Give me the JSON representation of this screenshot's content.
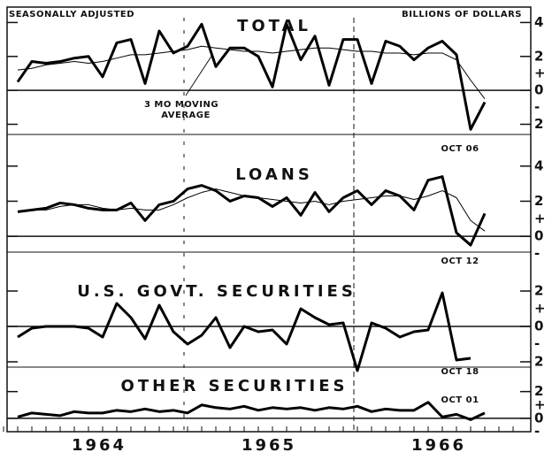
{
  "header": {
    "left": "SEASONALLY ADJUSTED",
    "right": "BILLIONS OF DOLLARS"
  },
  "x_axis": {
    "labels": [
      "1964",
      "1965",
      "1966"
    ]
  },
  "chart_data": [
    {
      "type": "line",
      "title": "TOTAL",
      "note": "OCT 06",
      "annotation": [
        "3 MO MOVING",
        "AVERAGE"
      ],
      "ylim": [
        -2.6,
        4.7
      ],
      "yticks": [
        {
          "value": -2,
          "label": "2"
        },
        0,
        2,
        4
      ],
      "signs": [
        "+",
        "-"
      ],
      "series": [
        {
          "name": "Monthly",
          "color": "#000000",
          "width": 3,
          "values": [
            0.5,
            1.7,
            1.6,
            1.7,
            1.9,
            2.0,
            0.8,
            2.8,
            3.0,
            0.4,
            3.5,
            2.2,
            2.6,
            3.9,
            1.4,
            2.5,
            2.5,
            2.0,
            0.2,
            3.9,
            1.8,
            3.2,
            0.3,
            3.0,
            3.0,
            0.4,
            2.9,
            2.6,
            1.8,
            2.5,
            2.9,
            2.1,
            -2.3,
            -0.7
          ]
        },
        {
          "name": "3 MO MOVING AVERAGE",
          "color": "#000000",
          "width": 1,
          "values": [
            1.2,
            1.3,
            1.5,
            1.6,
            1.7,
            1.6,
            1.7,
            1.9,
            2.1,
            2.1,
            2.2,
            2.3,
            2.4,
            2.6,
            2.5,
            2.4,
            2.3,
            2.3,
            2.2,
            2.3,
            2.4,
            2.5,
            2.5,
            2.4,
            2.3,
            2.3,
            2.2,
            2.2,
            2.1,
            2.2,
            2.2,
            1.8,
            0.6,
            -0.5
          ]
        }
      ]
    },
    {
      "type": "line",
      "title": "LOANS",
      "note": "OCT 12",
      "ylim": [
        -0.9,
        5.4
      ],
      "yticks": [
        0,
        2,
        4
      ],
      "signs": [
        "+",
        "-"
      ],
      "series": [
        {
          "name": "Monthly",
          "color": "#000000",
          "width": 3,
          "values": [
            1.4,
            1.5,
            1.6,
            1.9,
            1.8,
            1.6,
            1.5,
            1.5,
            1.9,
            0.9,
            1.8,
            2.0,
            2.7,
            2.9,
            2.6,
            2.0,
            2.3,
            2.2,
            1.7,
            2.2,
            1.2,
            2.5,
            1.4,
            2.2,
            2.6,
            1.8,
            2.6,
            2.3,
            1.5,
            3.2,
            3.4,
            0.2,
            -0.5,
            1.3
          ]
        },
        {
          "name": "3 MO MOVING AVERAGE",
          "color": "#000000",
          "width": 1,
          "values": [
            1.4,
            1.5,
            1.5,
            1.7,
            1.8,
            1.8,
            1.6,
            1.5,
            1.6,
            1.5,
            1.5,
            1.8,
            2.2,
            2.5,
            2.7,
            2.5,
            2.3,
            2.2,
            2.1,
            2.0,
            1.9,
            2.0,
            1.8,
            2.0,
            2.1,
            2.2,
            2.3,
            2.3,
            2.1,
            2.3,
            2.6,
            2.2,
            0.9,
            0.3
          ]
        }
      ]
    },
    {
      "type": "line",
      "title": "U.S. GOVT. SECURITIES",
      "note": "OCT 18",
      "ylim": [
        -2.3,
        3.7
      ],
      "yticks": [
        {
          "value": -2,
          "label": "2"
        },
        0,
        2
      ],
      "signs": [
        "+",
        "-"
      ],
      "series": [
        {
          "name": "Monthly",
          "color": "#000000",
          "width": 3,
          "values": [
            -0.6,
            -0.1,
            0.0,
            0.0,
            0.0,
            -0.1,
            -0.6,
            1.3,
            0.5,
            -0.7,
            1.2,
            -0.3,
            -1.0,
            -0.5,
            0.5,
            -1.2,
            0.0,
            -0.3,
            -0.2,
            -1.0,
            1.0,
            0.5,
            0.1,
            0.2,
            -2.5,
            0.2,
            -0.1,
            -0.6,
            -0.3,
            -0.2,
            1.9,
            -1.9,
            -1.8
          ]
        }
      ]
    },
    {
      "type": "line",
      "title": "OTHER SECURITIES",
      "note": "OCT 01",
      "ylim": [
        -1.0,
        3.5
      ],
      "yticks": [
        0,
        2
      ],
      "signs": [
        "+",
        "-"
      ],
      "series": [
        {
          "name": "Monthly",
          "color": "#000000",
          "width": 3,
          "values": [
            0.1,
            0.4,
            0.3,
            0.2,
            0.5,
            0.4,
            0.4,
            0.6,
            0.5,
            0.7,
            0.5,
            0.6,
            0.4,
            1.0,
            0.8,
            0.7,
            0.9,
            0.6,
            0.8,
            0.7,
            0.8,
            0.6,
            0.8,
            0.7,
            0.9,
            0.5,
            0.7,
            0.6,
            0.6,
            1.2,
            0.1,
            0.3,
            -0.1,
            0.4
          ]
        }
      ]
    }
  ]
}
